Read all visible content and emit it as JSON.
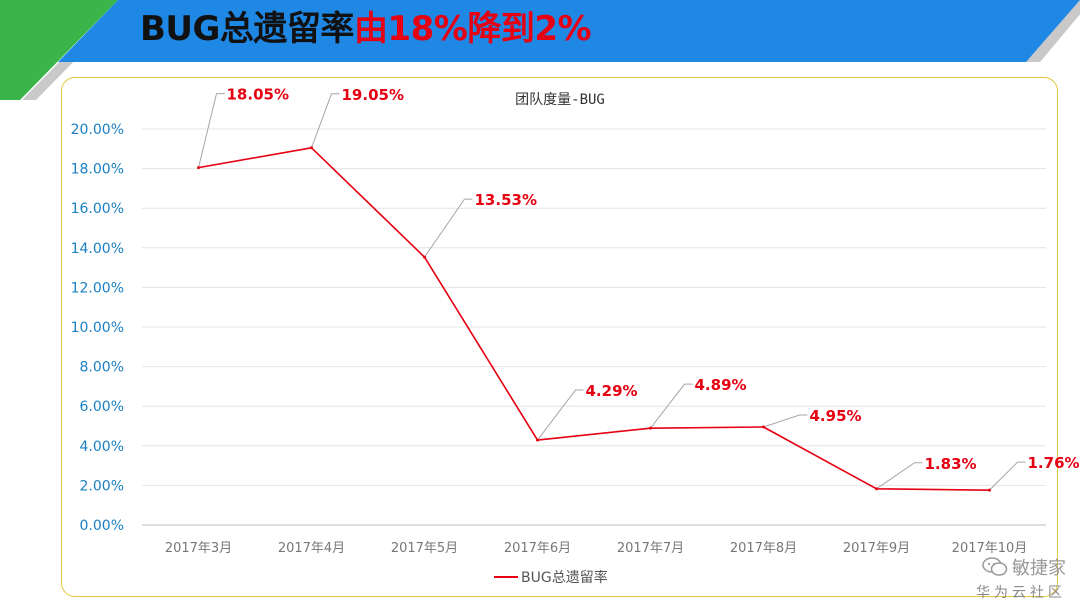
{
  "slide": {
    "title_part1": "BUG总遗留率",
    "title_part2": "由18%降到2%",
    "colors": {
      "banner_blue": "#1f88e5",
      "banner_green": "#39b54a",
      "accent_red": "#e60012",
      "frame_gold": "#e6c83a"
    }
  },
  "chart_data": {
    "type": "line",
    "title": "团队度量-BUG",
    "categories": [
      "2017年3月",
      "2017年4月",
      "2017年5月",
      "2017年6月",
      "2017年7月",
      "2017年8月",
      "2017年9月",
      "2017年10月"
    ],
    "series": [
      {
        "name": "BUG总遗留率",
        "values": [
          18.05,
          19.05,
          13.53,
          4.29,
          4.89,
          4.95,
          1.83,
          1.76
        ],
        "labels": [
          "18.05%",
          "19.05%",
          "13.53%",
          "4.29%",
          "4.89%",
          "4.95%",
          "1.83%",
          "1.76%"
        ],
        "color": "#e60012"
      }
    ],
    "y_ticks": [
      "0.00%",
      "2.00%",
      "4.00%",
      "6.00%",
      "8.00%",
      "10.00%",
      "12.00%",
      "14.00%",
      "16.00%",
      "18.00%",
      "20.00%"
    ],
    "ylim": [
      0,
      20
    ],
    "grid": true,
    "legend_position": "bottom-left"
  },
  "watermark": {
    "line1": "敏捷家",
    "line2": "华为云社区",
    "icon": "wechat-icon"
  }
}
